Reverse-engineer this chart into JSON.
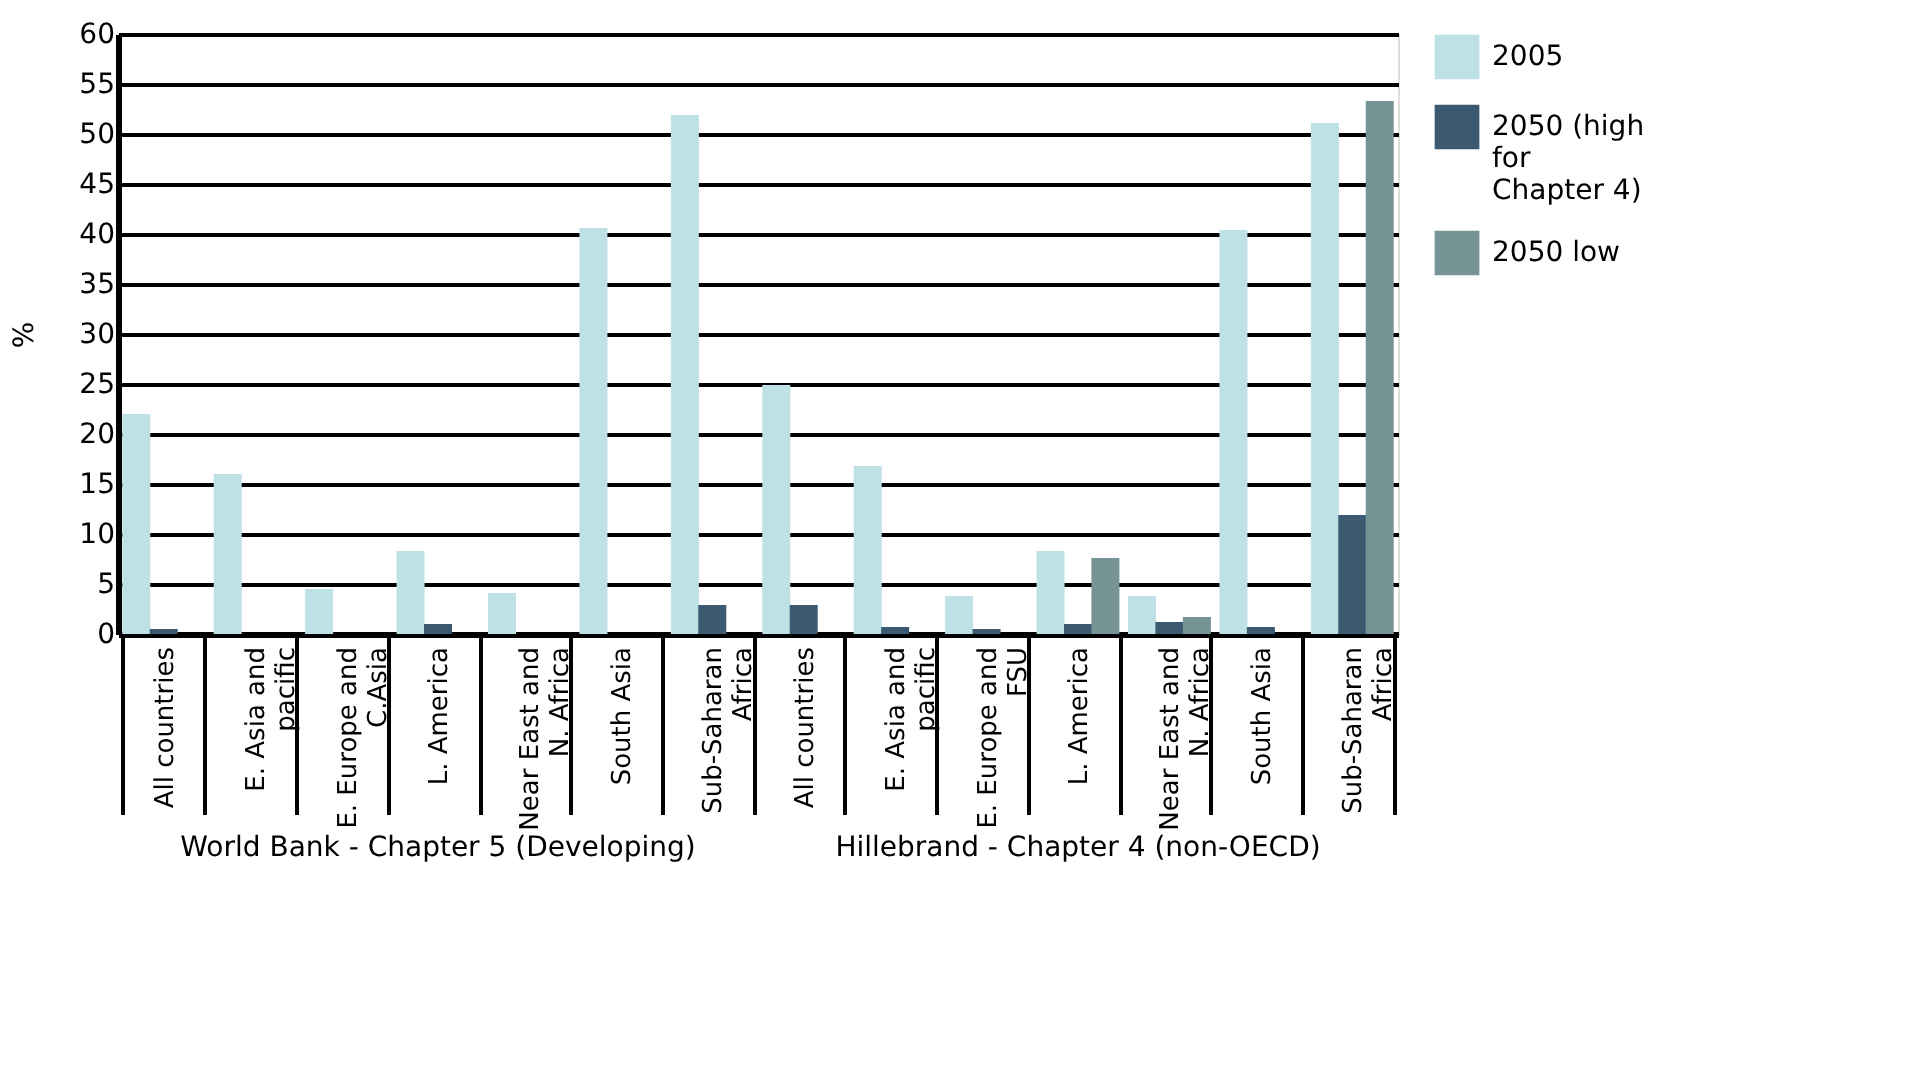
{
  "chart_data": {
    "type": "bar",
    "ylabel": "%",
    "categories": [
      "All countries",
      "E. Asia and pacific",
      "E. Europe and C.Asia",
      "L. America",
      "Near East and N. Africa",
      "South Asia",
      "Sub-Saharan Africa",
      "All countries",
      "E. Asia and pacific",
      "E. Europe and FSU",
      "L. America",
      "Near East and N. Africa",
      "South Asia",
      "Sub-Saharan Africa"
    ],
    "series": [
      {
        "name": "2005",
        "color": "#bde1e5",
        "values": [
          22.0,
          16.0,
          4.5,
          8.3,
          4.1,
          40.6,
          51.9,
          24.9,
          16.8,
          3.8,
          8.3,
          3.8,
          40.4,
          51.1
        ]
      },
      {
        "name": "2050 (high for Chapter 4)",
        "color": "#3b5a72",
        "values": [
          0.5,
          null,
          null,
          1.0,
          null,
          null,
          2.9,
          2.9,
          0.7,
          0.5,
          1.0,
          1.2,
          0.7,
          11.9
        ]
      },
      {
        "name": "2050 low",
        "color": "#769395",
        "values": [
          null,
          null,
          null,
          null,
          null,
          null,
          null,
          null,
          null,
          null,
          7.6,
          1.7,
          null,
          53.3
        ]
      }
    ],
    "ylim": [
      0,
      60
    ],
    "yticks": [
      0,
      5,
      10,
      15,
      20,
      25,
      30,
      35,
      40,
      45,
      50,
      55,
      60
    ],
    "grid": "y",
    "legend": "top right",
    "annotations": [
      "World Bank - Chapter 5 (Developing)",
      "Hillebrand - Chapter 4 (non-OECD)"
    ]
  }
}
